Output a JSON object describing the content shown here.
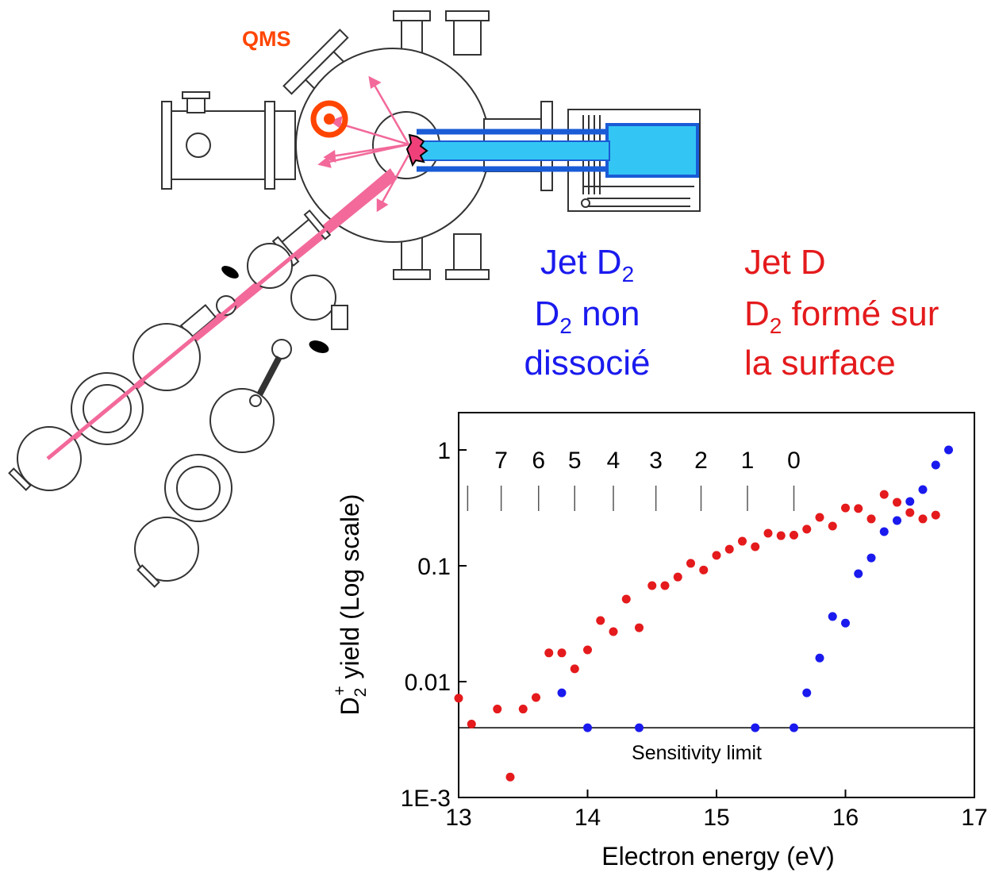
{
  "diagram": {
    "qms_label": "QMS",
    "legend_blue": [
      [
        "Jet D",
        "2"
      ],
      [
        "D",
        "2",
        " non"
      ],
      [
        "dissocié"
      ]
    ],
    "legend_red": [
      [
        "Jet D"
      ],
      [
        "D",
        "2",
        " formé sur"
      ],
      [
        "la surface"
      ]
    ]
  },
  "chart_data": {
    "type": "scatter",
    "xlabel": "Electron energy (eV)",
    "ylabel_parts": [
      "D",
      "2",
      "+",
      " yield (Log scale)"
    ],
    "log_y": true,
    "xlim": [
      13,
      17
    ],
    "xticks": [
      13,
      14,
      15,
      16,
      17
    ],
    "ylim": [
      0.001,
      2.1
    ],
    "yticks": [
      {
        "value": 0.001,
        "label": "1E-3"
      },
      0.01,
      0.1,
      1
    ],
    "sensitivity_limit": {
      "value": 0.004,
      "label": "Sensitivity limit"
    },
    "level_markers": {
      "x": [
        13.07,
        13.33,
        13.62,
        13.9,
        14.2,
        14.53,
        14.88,
        15.24,
        15.6
      ],
      "labels": [
        null,
        "7",
        "6",
        "5",
        "4",
        "3",
        "2",
        "1",
        "0"
      ]
    },
    "series": [
      {
        "name": "Jet D",
        "color": "#e41a1c",
        "x": [
          13.0,
          13.1,
          13.3,
          13.4,
          13.5,
          13.6,
          13.7,
          13.8,
          13.9,
          14.0,
          14.1,
          14.2,
          14.3,
          14.4,
          14.5,
          14.6,
          14.7,
          14.8,
          14.9,
          15.0,
          15.1,
          15.2,
          15.3,
          15.4,
          15.5,
          15.6,
          15.7,
          15.8,
          15.9,
          16.0,
          16.1,
          16.2,
          16.3,
          16.4,
          16.5,
          16.6,
          16.7
        ],
        "values": [
          0.0072,
          0.0043,
          0.0058,
          0.0015,
          0.0058,
          0.0073,
          0.0177,
          0.0177,
          0.0129,
          0.0188,
          0.0337,
          0.027,
          0.0516,
          0.0292,
          0.0674,
          0.0674,
          0.08,
          0.105,
          0.092,
          0.123,
          0.139,
          0.163,
          0.146,
          0.191,
          0.182,
          0.184,
          0.207,
          0.262,
          0.22,
          0.316,
          0.312,
          0.254,
          0.413,
          0.353,
          0.288,
          0.254,
          0.274
        ]
      },
      {
        "name": "Jet D2",
        "color": "#1a1aee",
        "x": [
          13.8,
          14.0,
          14.4,
          15.3,
          15.6,
          15.7,
          15.8,
          15.9,
          16.0,
          16.1,
          16.2,
          16.3,
          16.4,
          16.5,
          16.6,
          16.7,
          16.8
        ],
        "values": [
          0.008,
          0.004,
          0.004,
          0.004,
          0.004,
          0.008,
          0.016,
          0.0365,
          0.032,
          0.0855,
          0.117,
          0.197,
          0.246,
          0.359,
          0.455,
          0.741,
          1.0
        ]
      }
    ]
  }
}
